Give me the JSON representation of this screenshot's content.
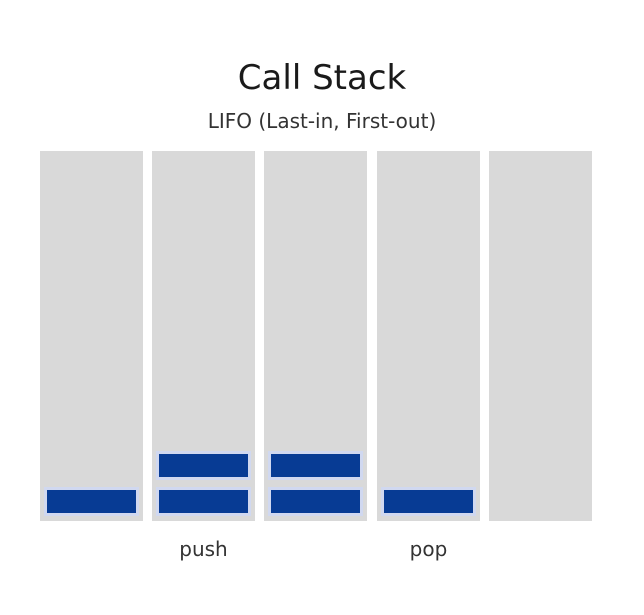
{
  "diagram": {
    "title": "Call Stack",
    "subtitle": "LIFO (Last-in, First-out)",
    "frame_color": "#073b94",
    "column_color": "#d9d9d9",
    "columns": [
      {
        "frames": 1,
        "label": ""
      },
      {
        "frames": 2,
        "label": "push"
      },
      {
        "frames": 2,
        "label": ""
      },
      {
        "frames": 1,
        "label": "pop"
      },
      {
        "frames": 0,
        "label": ""
      }
    ]
  }
}
